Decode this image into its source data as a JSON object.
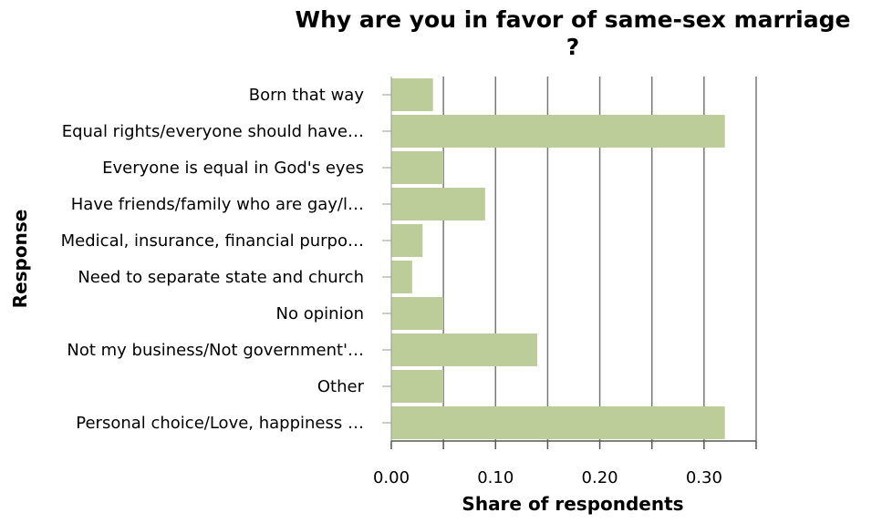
{
  "chart_data": {
    "type": "bar",
    "orientation": "horizontal",
    "title_line1": "Why are you in favor of same-sex marriage",
    "title_line2": "?",
    "xlabel": "Share of respondents",
    "ylabel": "Response",
    "xlim": [
      0,
      0.35
    ],
    "x_ticks": [
      0,
      0.05,
      0.1,
      0.15,
      0.2,
      0.25,
      0.3,
      0.35
    ],
    "x_tick_labels": [
      "0.00",
      "",
      "0.10",
      "",
      "0.20",
      "",
      "0.30",
      ""
    ],
    "grid": "vertical",
    "bar_color": "#bccd9a",
    "categories": [
      "Born that way",
      "Equal rights/everyone should have…",
      "Everyone is equal in God's eyes",
      "Have friends/family who are gay/l…",
      "Medical, insurance, financial purpo…",
      "Need to separate state and church",
      "No opinion",
      "Not my business/Not government'…",
      "Other",
      "Personal choice/Love, happiness …"
    ],
    "values": [
      0.04,
      0.32,
      0.05,
      0.09,
      0.03,
      0.02,
      0.05,
      0.14,
      0.05,
      0.32
    ]
  }
}
